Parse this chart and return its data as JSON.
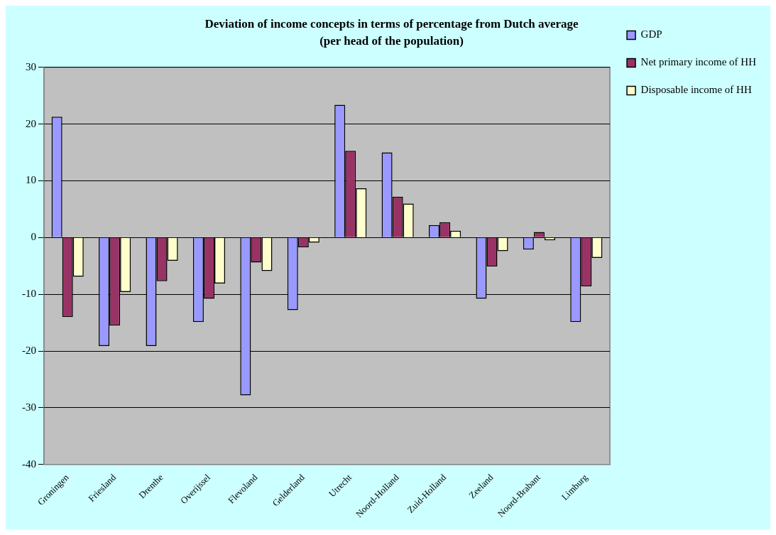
{
  "chart_data": {
    "type": "bar",
    "title": "Deviation of income concepts in terms of percentage from Dutch average",
    "subtitle": "(per head of the population)",
    "categories": [
      "Groningen",
      "Friesland",
      "Drenthe",
      "Overijssel",
      "Flevoland",
      "Gelderland",
      "Utrecht",
      "Noord-Holland",
      "Zuid-Holland",
      "Zeeland",
      "Noord-Brabant",
      "Limburg"
    ],
    "series": [
      {
        "name": "GDP",
        "color": "#9999ff",
        "values": [
          21.3,
          -19.1,
          -19.1,
          -14.9,
          -27.8,
          -12.8,
          23.4,
          15.0,
          2.2,
          -10.8,
          -2.1,
          -14.9
        ]
      },
      {
        "name": "Net primary income of HH",
        "color": "#993366",
        "values": [
          -14.0,
          -15.5,
          -7.7,
          -10.8,
          -4.4,
          -1.7,
          15.3,
          7.2,
          2.7,
          -5.1,
          1.0,
          -8.6
        ]
      },
      {
        "name": "Disposable income of HH",
        "color": "#ffffcc",
        "values": [
          -6.9,
          -9.6,
          -4.1,
          -8.1,
          -5.9,
          -0.9,
          8.7,
          6.0,
          1.2,
          -2.4,
          -0.5,
          -3.6
        ]
      }
    ],
    "ylim": [
      -40,
      30
    ],
    "yticks": [
      -40,
      -30,
      -20,
      -10,
      0,
      10,
      20,
      30
    ],
    "grid": "y",
    "legend": "right"
  }
}
